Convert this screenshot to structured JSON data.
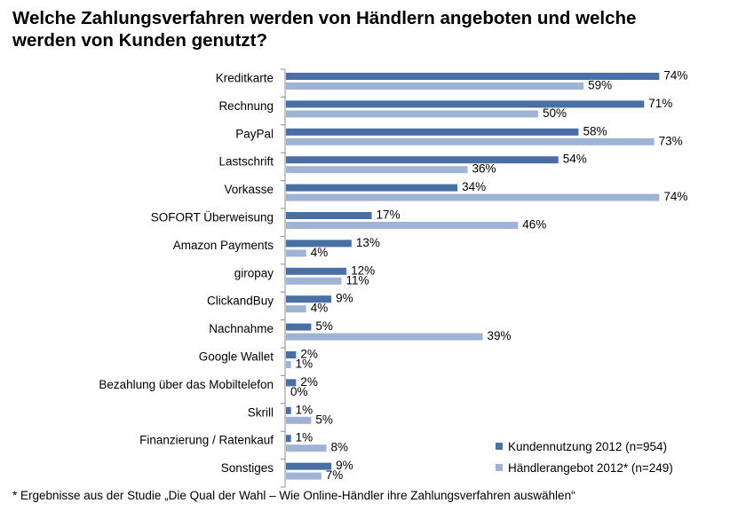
{
  "title_line1": "Welche Zahlungsverfahren werden von Händlern angeboten und welche",
  "title_line2": "werden von Kunden genutzt?",
  "footnote": "* Ergebnisse aus der Studie „Die Qual der Wahl – Wie Online-Händler ihre Zahlungsverfahren auswählen“",
  "colors": {
    "dark": "#4a6fa5",
    "light": "#9fb3d4"
  },
  "chart_data": {
    "type": "bar",
    "orientation": "horizontal",
    "title": "Welche Zahlungsverfahren werden von Händlern angeboten und welche werden von Kunden genutzt?",
    "categories": [
      "Kreditkarte",
      "Rechnung",
      "PayPal",
      "Lastschrift",
      "Vorkasse",
      "SOFORT Überweisung",
      "Amazon Payments",
      "giropay",
      "ClickandBuy",
      "Nachnahme",
      "Google Wallet",
      "Bezahlung über das Mobiltelefon",
      "Skrill",
      "Finanzierung / Ratenkauf",
      "Sonstiges"
    ],
    "series": [
      {
        "name": "Kundennutzung 2012 (n=954)",
        "color": "#4a6fa5",
        "values": [
          74,
          71,
          58,
          54,
          34,
          17,
          13,
          12,
          9,
          5,
          2,
          2,
          1,
          1,
          9
        ],
        "labels": [
          "74%",
          "71%",
          "58%",
          "54%",
          "34%",
          "17%",
          "13%",
          "12%",
          "9%",
          "5%",
          "2%",
          "2%",
          "1%",
          "1%",
          "9%"
        ]
      },
      {
        "name": "Händlerangebot 2012* (n=249)",
        "color": "#9fb3d4",
        "values": [
          59,
          50,
          73,
          36,
          74,
          46,
          4,
          11,
          4,
          39,
          1,
          0,
          5,
          8,
          7
        ],
        "labels": [
          "59%",
          "50%",
          "73%",
          "36%",
          "74%",
          "46%",
          "4%",
          "11%",
          "4%",
          "39%",
          "1%",
          "0%",
          "5%",
          "8%",
          "7%"
        ]
      }
    ],
    "xlim": [
      0,
      74
    ],
    "grid": false,
    "legend_position": "bottom-right"
  }
}
